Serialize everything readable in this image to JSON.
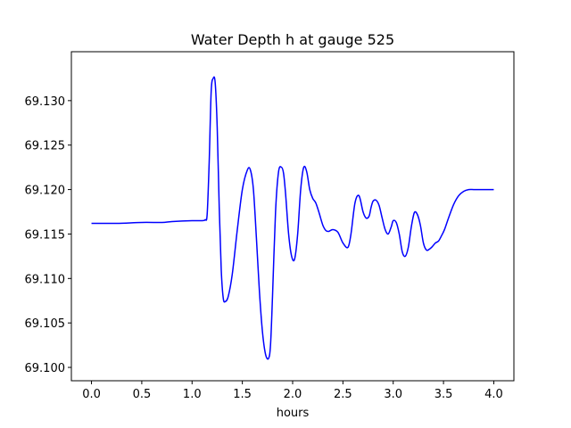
{
  "chart_data": {
    "type": "line",
    "title": "Water Depth h at gauge 525",
    "xlabel": "hours",
    "ylabel": "",
    "xlim": [
      -0.2,
      4.2
    ],
    "ylim": [
      69.0985,
      69.1355
    ],
    "x_ticks": [
      0.0,
      0.5,
      1.0,
      1.5,
      2.0,
      2.5,
      3.0,
      3.5,
      4.0
    ],
    "x_tick_labels": [
      "0.0",
      "0.5",
      "1.0",
      "1.5",
      "2.0",
      "2.5",
      "3.0",
      "3.5",
      "4.0"
    ],
    "y_ticks": [
      69.1,
      69.105,
      69.11,
      69.115,
      69.12,
      69.125,
      69.13
    ],
    "y_tick_labels": [
      "69.100",
      "69.105",
      "69.110",
      "69.115",
      "69.120",
      "69.125",
      "69.130"
    ],
    "grid": false,
    "line_color": "#0000ff",
    "series": [
      {
        "x": [
          0.0,
          0.25,
          0.5,
          0.7,
          0.8,
          1.0,
          1.1,
          1.13,
          1.15,
          1.17,
          1.19,
          1.21,
          1.23,
          1.25,
          1.27,
          1.29,
          1.31,
          1.33,
          1.36,
          1.4,
          1.45,
          1.5,
          1.55,
          1.58,
          1.61,
          1.64,
          1.67,
          1.7,
          1.73,
          1.76,
          1.78,
          1.8,
          1.83,
          1.86,
          1.89,
          1.91,
          1.93,
          1.96,
          1.99,
          2.02,
          2.05,
          2.08,
          2.11,
          2.14,
          2.17,
          2.2,
          2.23,
          2.26,
          2.3,
          2.33,
          2.36,
          2.4,
          2.45,
          2.5,
          2.55,
          2.58,
          2.62,
          2.66,
          2.7,
          2.73,
          2.76,
          2.78,
          2.8,
          2.83,
          2.86,
          2.89,
          2.92,
          2.95,
          2.98,
          3.0,
          3.03,
          3.06,
          3.09,
          3.12,
          3.15,
          3.18,
          3.21,
          3.24,
          3.27,
          3.3,
          3.33,
          3.36,
          3.39,
          3.42,
          3.45,
          3.48,
          3.51,
          3.55,
          3.6,
          3.65,
          3.7,
          3.75,
          3.8,
          3.85,
          3.9,
          3.95,
          4.0
        ],
        "y": [
          69.1162,
          69.1162,
          69.1163,
          69.1163,
          69.1164,
          69.1165,
          69.1165,
          69.1166,
          69.1172,
          69.123,
          69.131,
          69.1325,
          69.132,
          69.127,
          69.118,
          69.111,
          69.1078,
          69.1074,
          69.108,
          69.1105,
          69.1155,
          69.12,
          69.1222,
          69.1222,
          69.12,
          69.1145,
          69.1085,
          69.104,
          69.1015,
          69.101,
          69.1025,
          69.108,
          69.1175,
          69.122,
          69.1225,
          69.1218,
          69.1195,
          69.115,
          69.1125,
          69.1122,
          69.115,
          69.12,
          69.1225,
          69.122,
          69.12,
          69.119,
          69.1185,
          69.1175,
          69.116,
          69.1154,
          69.1153,
          69.1155,
          69.1152,
          69.114,
          69.1135,
          69.115,
          69.1185,
          69.1193,
          69.1175,
          69.1168,
          69.117,
          69.118,
          69.1187,
          69.1188,
          69.1182,
          69.1168,
          69.1155,
          69.115,
          69.1158,
          69.1165,
          69.1163,
          69.115,
          69.113,
          69.1125,
          69.1135,
          69.1158,
          69.1174,
          69.1172,
          69.116,
          69.114,
          69.1132,
          69.1133,
          69.1136,
          69.114,
          69.1142,
          69.1148,
          69.1155,
          69.1168,
          69.1183,
          69.1193,
          69.1198,
          69.12,
          69.12,
          69.12,
          69.12,
          69.12,
          69.12
        ]
      }
    ]
  }
}
